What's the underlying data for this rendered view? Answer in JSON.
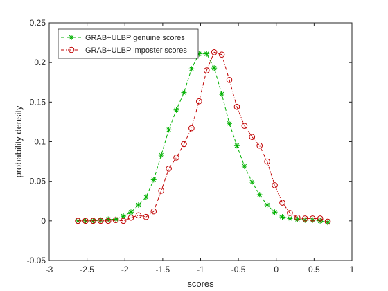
{
  "chart_data": {
    "type": "line",
    "xlabel": "scores",
    "ylabel": "probability density",
    "xlim": [
      -3,
      1
    ],
    "ylim": [
      -0.05,
      0.25
    ],
    "xticks": [
      "-3",
      "-2.5",
      "-2",
      "-1.5",
      "-1",
      "-0.5",
      "0",
      "0.5",
      "1"
    ],
    "yticks": [
      "-0.05",
      "0",
      "0.05",
      "0.1",
      "0.15",
      "0.2",
      "0.25"
    ],
    "grid": false,
    "legend_position": "top-left",
    "series": [
      {
        "name": "GRAB+ULBP genuine scores",
        "color": "#00b000",
        "line_style": "dashed",
        "marker": "asterisk",
        "x": [
          -2.62,
          -2.52,
          -2.42,
          -2.32,
          -2.22,
          -2.12,
          -2.02,
          -1.92,
          -1.82,
          -1.72,
          -1.62,
          -1.52,
          -1.42,
          -1.32,
          -1.22,
          -1.12,
          -1.02,
          -0.92,
          -0.82,
          -0.72,
          -0.62,
          -0.52,
          -0.42,
          -0.32,
          -0.22,
          -0.12,
          -0.02,
          0.08,
          0.18,
          0.28,
          0.38,
          0.48,
          0.58,
          0.68
        ],
        "y": [
          0.0,
          0.0,
          0.0,
          0.001,
          0.002,
          0.002,
          0.006,
          0.011,
          0.02,
          0.03,
          0.052,
          0.083,
          0.115,
          0.14,
          0.162,
          0.192,
          0.211,
          0.211,
          0.193,
          0.16,
          0.123,
          0.095,
          0.069,
          0.049,
          0.033,
          0.02,
          0.011,
          0.005,
          0.003,
          0.002,
          0.001,
          0.001,
          0.0,
          -0.002
        ]
      },
      {
        "name": "GRAB+ULBP imposter scores",
        "color": "#c00000",
        "line_style": "dash-dot",
        "marker": "circle",
        "x": [
          -2.62,
          -2.52,
          -2.42,
          -2.32,
          -2.22,
          -2.12,
          -2.02,
          -1.92,
          -1.82,
          -1.72,
          -1.62,
          -1.52,
          -1.42,
          -1.32,
          -1.22,
          -1.12,
          -1.02,
          -0.92,
          -0.82,
          -0.72,
          -0.62,
          -0.52,
          -0.42,
          -0.32,
          -0.22,
          -0.12,
          -0.02,
          0.08,
          0.18,
          0.28,
          0.38,
          0.48,
          0.58,
          0.68
        ],
        "y": [
          0.0,
          0.0,
          0.0,
          0.0,
          0.0,
          0.001,
          0.0,
          0.004,
          0.007,
          0.005,
          0.012,
          0.038,
          0.066,
          0.08,
          0.097,
          0.117,
          0.151,
          0.19,
          0.213,
          0.21,
          0.178,
          0.144,
          0.12,
          0.106,
          0.095,
          0.075,
          0.045,
          0.023,
          0.01,
          0.004,
          0.003,
          0.003,
          0.003,
          -0.001
        ]
      }
    ]
  }
}
